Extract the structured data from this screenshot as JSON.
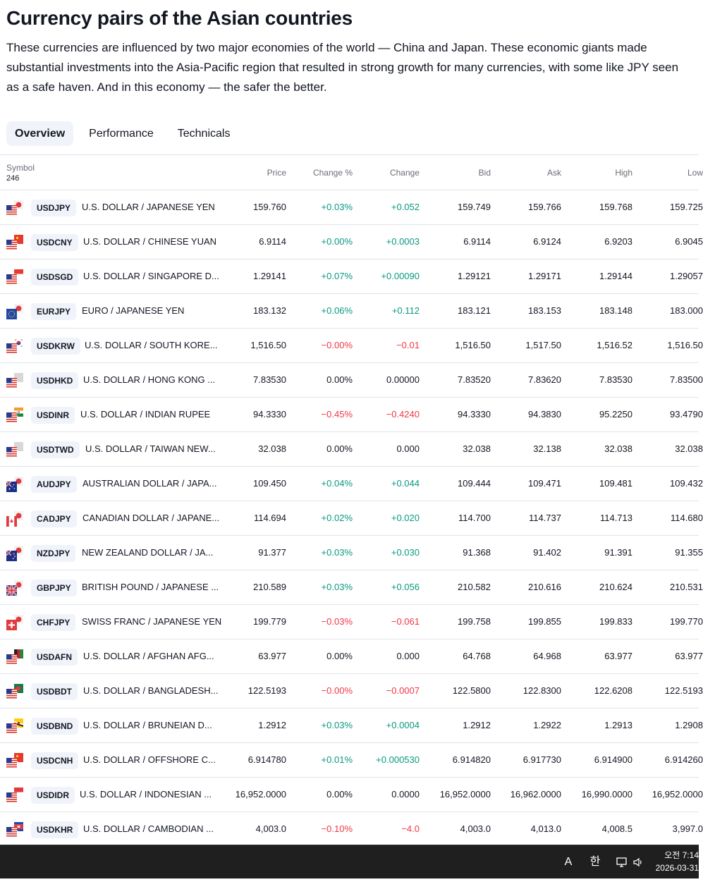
{
  "header": {
    "title": "Currency pairs of the Asian countries",
    "description": "These currencies are influenced by two major economies of the world — China and Japan. These economic giants made substantial investments into the Asia-Pacific region that resulted in strong growth for many currencies, with some like JPY seen as a safe haven. And in this economy — the safer the better."
  },
  "tabs": [
    {
      "label": "Overview",
      "active": true
    },
    {
      "label": "Performance",
      "active": false
    },
    {
      "label": "Technicals",
      "active": false
    }
  ],
  "table": {
    "columns": {
      "symbol": "Symbol",
      "count": "246",
      "price": "Price",
      "change_pct": "Change %",
      "change": "Change",
      "bid": "Bid",
      "ask": "Ask",
      "high": "High",
      "low": "Low"
    },
    "rows": [
      {
        "ticker": "USDJPY",
        "name": "U.S. DOLLAR / JAPANESE YEN",
        "price": "159.760",
        "change_pct": "+0.03%",
        "change": "+0.052",
        "bid": "159.749",
        "ask": "159.766",
        "high": "159.768",
        "low": "159.725",
        "trend": "pos",
        "base_flag": "us-flag-icon",
        "quote_flag": "jp-flag-icon"
      },
      {
        "ticker": "USDCNY",
        "name": "U.S. DOLLAR / CHINESE YUAN",
        "price": "6.9114",
        "change_pct": "+0.00%",
        "change": "+0.0003",
        "bid": "6.9114",
        "ask": "6.9124",
        "high": "6.9203",
        "low": "6.9045",
        "trend": "pos",
        "base_flag": "us-flag-icon",
        "quote_flag": "cn-flag-icon"
      },
      {
        "ticker": "USDSGD",
        "name": "U.S. DOLLAR / SINGAPORE D...",
        "price": "1.29141",
        "change_pct": "+0.07%",
        "change": "+0.00090",
        "bid": "1.29121",
        "ask": "1.29171",
        "high": "1.29144",
        "low": "1.29057",
        "trend": "pos",
        "base_flag": "us-flag-icon",
        "quote_flag": "sg-flag-icon"
      },
      {
        "ticker": "EURJPY",
        "name": "EURO / JAPANESE YEN",
        "price": "183.132",
        "change_pct": "+0.06%",
        "change": "+0.112",
        "bid": "183.121",
        "ask": "183.153",
        "high": "183.148",
        "low": "183.000",
        "trend": "pos",
        "base_flag": "eu-flag-icon",
        "quote_flag": "jp-flag-icon"
      },
      {
        "ticker": "USDKRW",
        "name": "U.S. DOLLAR / SOUTH KORE...",
        "price": "1,516.50",
        "change_pct": "−0.00%",
        "change": "−0.01",
        "bid": "1,516.50",
        "ask": "1,517.50",
        "high": "1,516.52",
        "low": "1,516.50",
        "trend": "neg",
        "base_flag": "us-flag-icon",
        "quote_flag": "kr-flag-icon"
      },
      {
        "ticker": "USDHKD",
        "name": "U.S. DOLLAR / HONG KONG ...",
        "price": "7.83530",
        "change_pct": "0.00%",
        "change": "0.00000",
        "bid": "7.83520",
        "ask": "7.83620",
        "high": "7.83530",
        "low": "7.83500",
        "trend": "neutral",
        "base_flag": "us-flag-icon",
        "quote_flag": "hk-flag-icon"
      },
      {
        "ticker": "USDINR",
        "name": "U.S. DOLLAR / INDIAN RUPEE",
        "price": "94.3330",
        "change_pct": "−0.45%",
        "change": "−0.4240",
        "bid": "94.3330",
        "ask": "94.3830",
        "high": "95.2250",
        "low": "93.4790",
        "trend": "neg",
        "base_flag": "us-flag-icon",
        "quote_flag": "in-flag-icon"
      },
      {
        "ticker": "USDTWD",
        "name": "U.S. DOLLAR / TAIWAN NEW...",
        "price": "32.038",
        "change_pct": "0.00%",
        "change": "0.000",
        "bid": "32.038",
        "ask": "32.138",
        "high": "32.038",
        "low": "32.038",
        "trend": "neutral",
        "base_flag": "us-flag-icon",
        "quote_flag": "tw-flag-icon"
      },
      {
        "ticker": "AUDJPY",
        "name": "AUSTRALIAN DOLLAR / JAPA...",
        "price": "109.450",
        "change_pct": "+0.04%",
        "change": "+0.044",
        "bid": "109.444",
        "ask": "109.471",
        "high": "109.481",
        "low": "109.432",
        "trend": "pos",
        "base_flag": "au-flag-icon",
        "quote_flag": "jp-flag-icon"
      },
      {
        "ticker": "CADJPY",
        "name": "CANADIAN DOLLAR / JAPANE...",
        "price": "114.694",
        "change_pct": "+0.02%",
        "change": "+0.020",
        "bid": "114.700",
        "ask": "114.737",
        "high": "114.713",
        "low": "114.680",
        "trend": "pos",
        "base_flag": "ca-flag-icon",
        "quote_flag": "jp-flag-icon"
      },
      {
        "ticker": "NZDJPY",
        "name": "NEW ZEALAND DOLLAR / JA...",
        "price": "91.377",
        "change_pct": "+0.03%",
        "change": "+0.030",
        "bid": "91.368",
        "ask": "91.402",
        "high": "91.391",
        "low": "91.355",
        "trend": "pos",
        "base_flag": "nz-flag-icon",
        "quote_flag": "jp-flag-icon"
      },
      {
        "ticker": "GBPJPY",
        "name": "BRITISH POUND / JAPANESE ...",
        "price": "210.589",
        "change_pct": "+0.03%",
        "change": "+0.056",
        "bid": "210.582",
        "ask": "210.616",
        "high": "210.624",
        "low": "210.531",
        "trend": "pos",
        "base_flag": "gb-flag-icon",
        "quote_flag": "jp-flag-icon"
      },
      {
        "ticker": "CHFJPY",
        "name": "SWISS FRANC / JAPANESE YEN",
        "price": "199.779",
        "change_pct": "−0.03%",
        "change": "−0.061",
        "bid": "199.758",
        "ask": "199.855",
        "high": "199.833",
        "low": "199.770",
        "trend": "neg",
        "base_flag": "ch-flag-icon",
        "quote_flag": "jp-flag-icon"
      },
      {
        "ticker": "USDAFN",
        "name": "U.S. DOLLAR / AFGHAN AFG...",
        "price": "63.977",
        "change_pct": "0.00%",
        "change": "0.000",
        "bid": "64.768",
        "ask": "64.968",
        "high": "63.977",
        "low": "63.977",
        "trend": "neutral",
        "base_flag": "us-flag-icon",
        "quote_flag": "af-flag-icon"
      },
      {
        "ticker": "USDBDT",
        "name": "U.S. DOLLAR / BANGLADESH...",
        "price": "122.5193",
        "change_pct": "−0.00%",
        "change": "−0.0007",
        "bid": "122.5800",
        "ask": "122.8300",
        "high": "122.6208",
        "low": "122.5193",
        "trend": "neg",
        "base_flag": "us-flag-icon",
        "quote_flag": "bd-flag-icon"
      },
      {
        "ticker": "USDBND",
        "name": "U.S. DOLLAR / BRUNEIAN D...",
        "price": "1.2912",
        "change_pct": "+0.03%",
        "change": "+0.0004",
        "bid": "1.2912",
        "ask": "1.2922",
        "high": "1.2913",
        "low": "1.2908",
        "trend": "pos",
        "base_flag": "us-flag-icon",
        "quote_flag": "bn-flag-icon"
      },
      {
        "ticker": "USDCNH",
        "name": "U.S. DOLLAR / OFFSHORE C...",
        "price": "6.914780",
        "change_pct": "+0.01%",
        "change": "+0.000530",
        "bid": "6.914820",
        "ask": "6.917730",
        "high": "6.914900",
        "low": "6.914260",
        "trend": "pos",
        "base_flag": "us-flag-icon",
        "quote_flag": "cn-flag-icon"
      },
      {
        "ticker": "USDIDR",
        "name": "U.S. DOLLAR / INDONESIAN ...",
        "price": "16,952.0000",
        "change_pct": "0.00%",
        "change": "0.0000",
        "bid": "16,952.0000",
        "ask": "16,962.0000",
        "high": "16,990.0000",
        "low": "16,952.0000",
        "trend": "neutral",
        "base_flag": "us-flag-icon",
        "quote_flag": "id-flag-icon"
      },
      {
        "ticker": "USDKHR",
        "name": "U.S. DOLLAR / CAMBODIAN ...",
        "price": "4,003.0",
        "change_pct": "−0.10%",
        "change": "−4.0",
        "bid": "4,003.0",
        "ask": "4,013.0",
        "high": "4,008.5",
        "low": "3,997.0",
        "trend": "neg",
        "base_flag": "us-flag-icon",
        "quote_flag": "kh-flag-icon"
      }
    ]
  },
  "taskbar": {
    "ime_letter": "A",
    "ime_korean": "한",
    "time": "오전 7:14",
    "date": "2026-03-31"
  },
  "colors": {
    "positive": "#089981",
    "negative": "#f23645",
    "text": "#131722",
    "muted": "#6a6d78",
    "border": "#e0e3eb",
    "chip": "#f0f3fa"
  }
}
